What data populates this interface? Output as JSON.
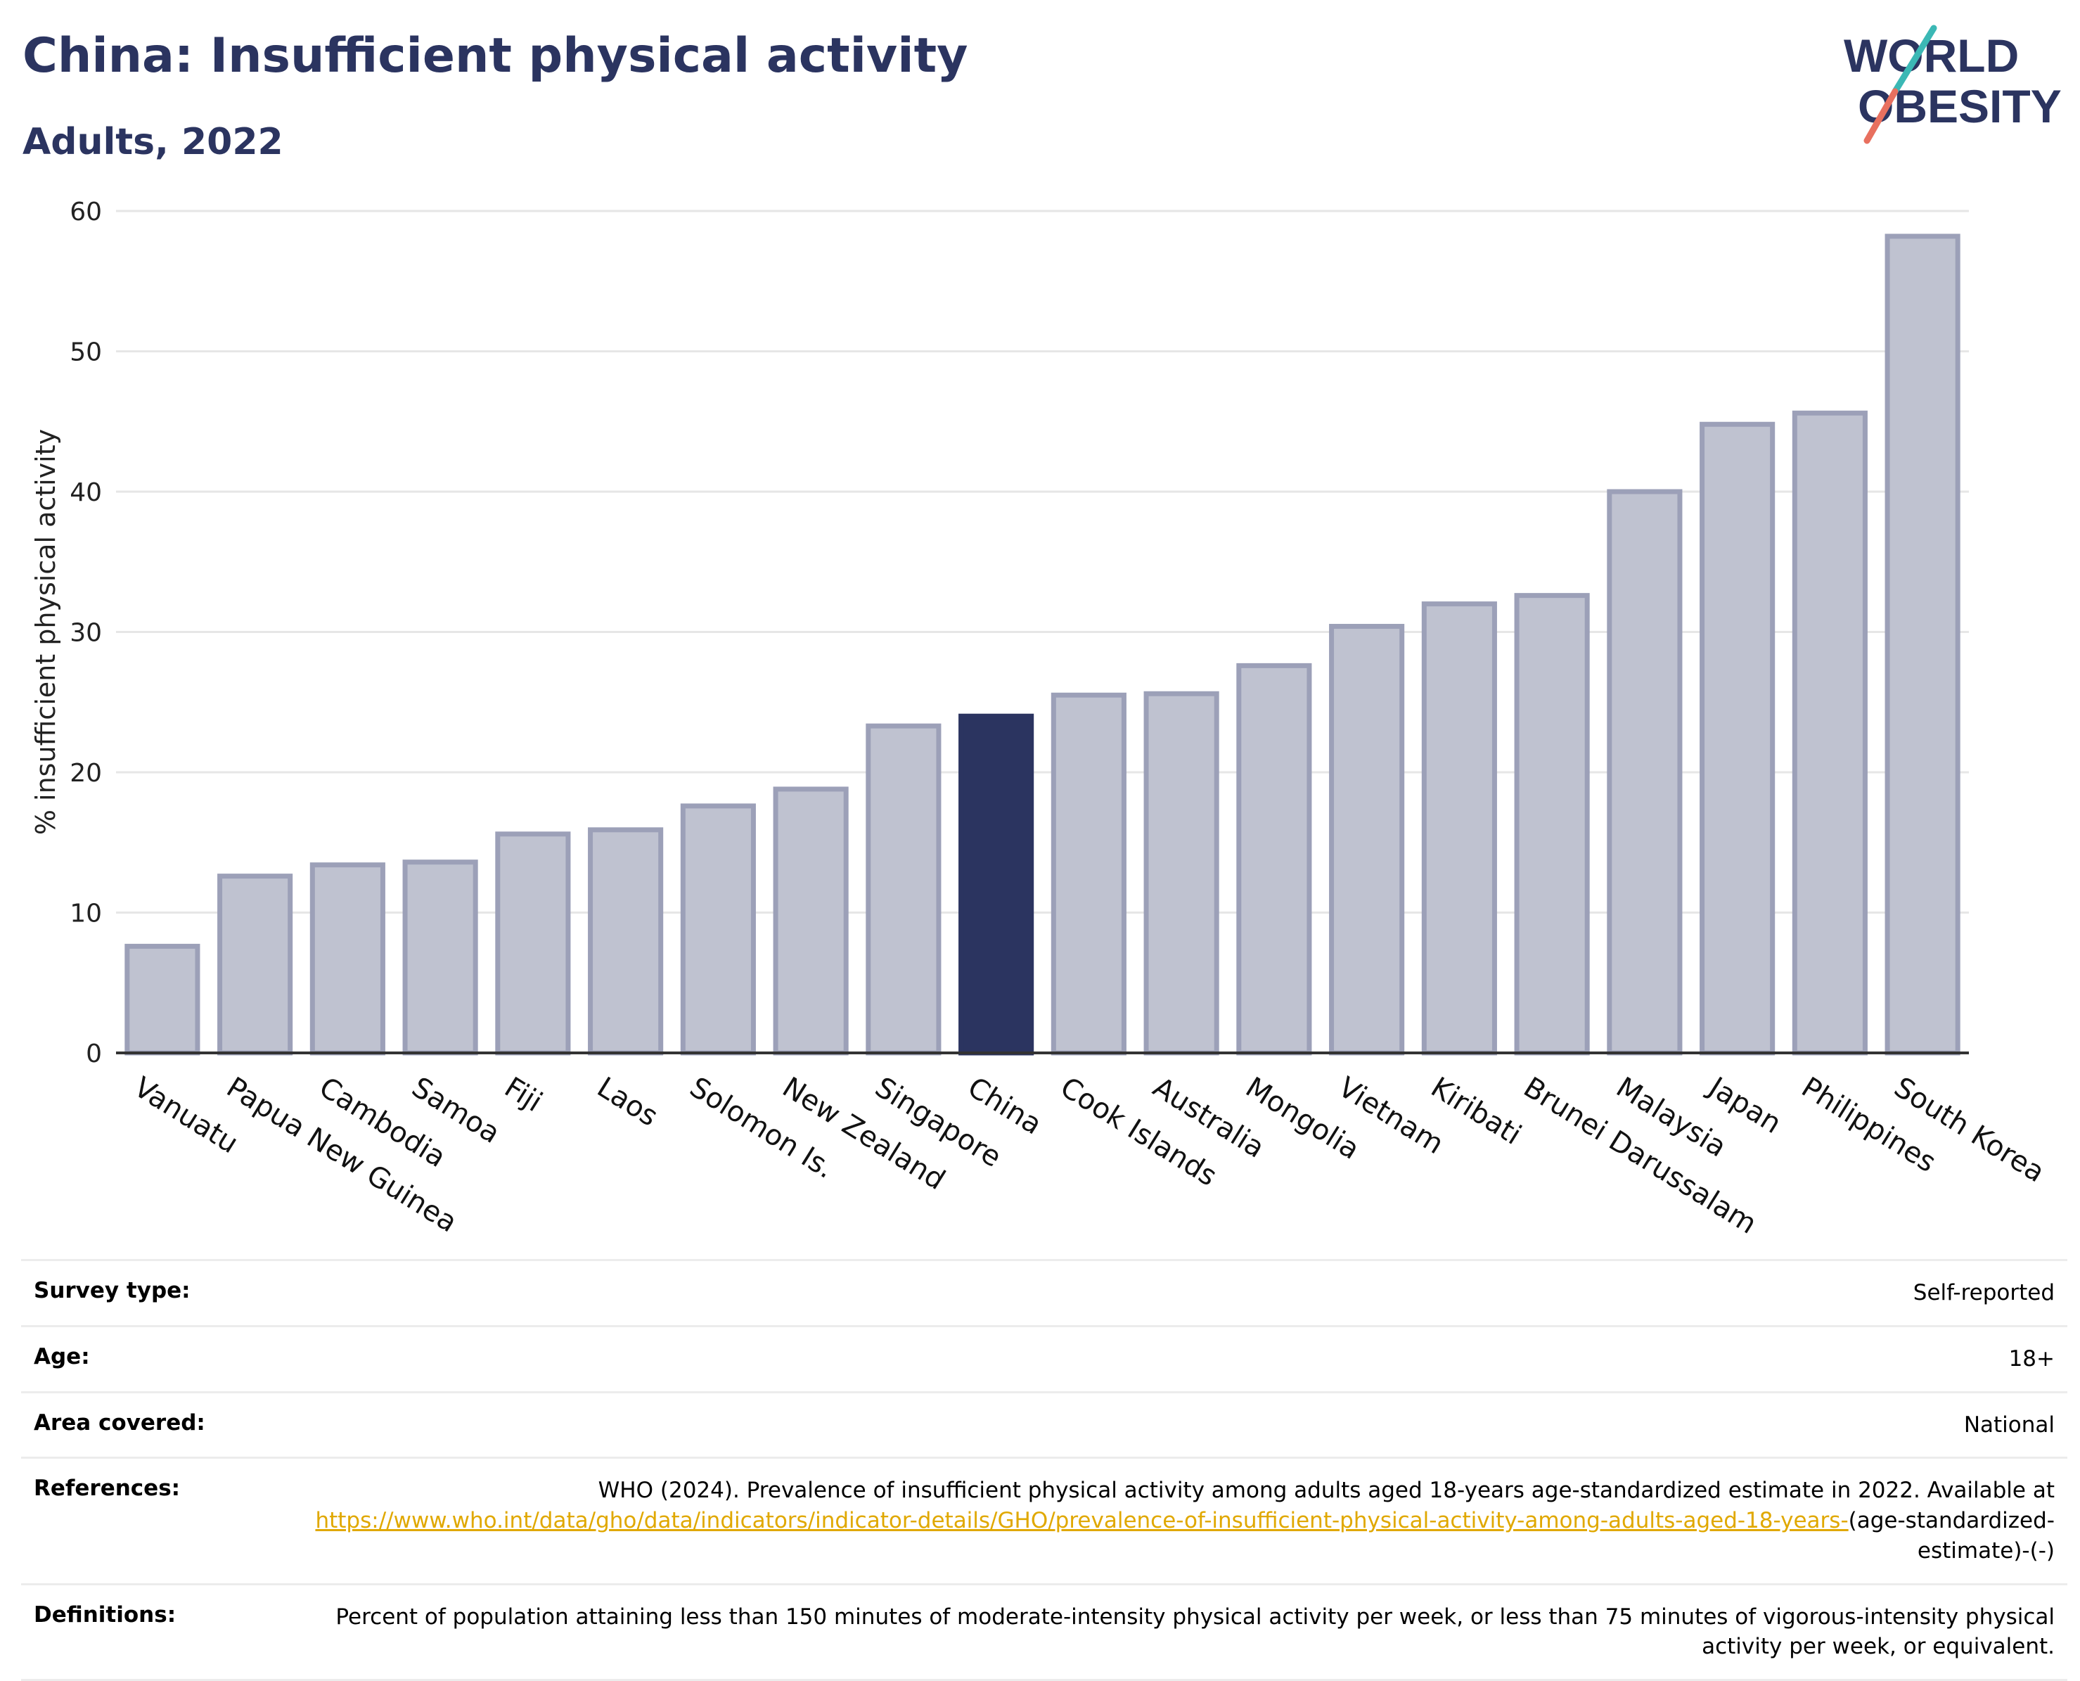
{
  "header": {
    "title": "China: Insufficient physical activity",
    "subtitle": "Adults, 2022",
    "logo_line1": "WORLD",
    "logo_line2": "OBESITY"
  },
  "colors": {
    "bar_default": "#bfc2d0",
    "bar_border": "#9ca0b8",
    "bar_highlight": "#2b3460",
    "grid": "#e6e6e6",
    "text": "#2b3460",
    "logo_teal": "#3bb8b5",
    "logo_coral": "#e8705f",
    "link": "#e0a800"
  },
  "chart_data": {
    "type": "bar",
    "ylabel": "% insufficient physical activity",
    "ylim": [
      0,
      60
    ],
    "yticks": [
      0,
      10,
      20,
      30,
      40,
      50,
      60
    ],
    "grid": true,
    "highlight": "China",
    "categories": [
      "Vanuatu",
      "Papua New Guinea",
      "Cambodia",
      "Samoa",
      "Fiji",
      "Laos",
      "Solomon Is.",
      "New Zealand",
      "Singapore",
      "China",
      "Cook Islands",
      "Australia",
      "Mongolia",
      "Vietnam",
      "Kiribati",
      "Brunei Darussalam",
      "Malaysia",
      "Japan",
      "Philippines",
      "South Korea"
    ],
    "values": [
      7.6,
      12.6,
      13.4,
      13.6,
      15.6,
      15.9,
      17.6,
      18.8,
      23.3,
      24.0,
      25.5,
      25.6,
      27.6,
      30.4,
      32.0,
      32.6,
      40.0,
      44.8,
      45.6,
      58.2
    ]
  },
  "meta": [
    {
      "label": "Survey type:",
      "value": "Self-reported"
    },
    {
      "label": "Age:",
      "value": "18+"
    },
    {
      "label": "Area covered:",
      "value": "National"
    },
    {
      "label": "References:",
      "value": "WHO (2024). Prevalence of insufficient physical activity among adults aged 18-years age-standardized estimate in 2022. Available at",
      "link": "https://www.who.int/data/gho/data/indicators/indicator-details/GHO/prevalence-of-insufficient-physical-activity-among-adults-aged-18-years-",
      "suffix": "(age-standardized-estimate)-(-)"
    },
    {
      "label": "Definitions:",
      "value": "Percent of population attaining less than 150 minutes of moderate-intensity physical activity per week, or less than 75 minutes of vigorous-intensity physical activity per week, or equivalent."
    }
  ]
}
